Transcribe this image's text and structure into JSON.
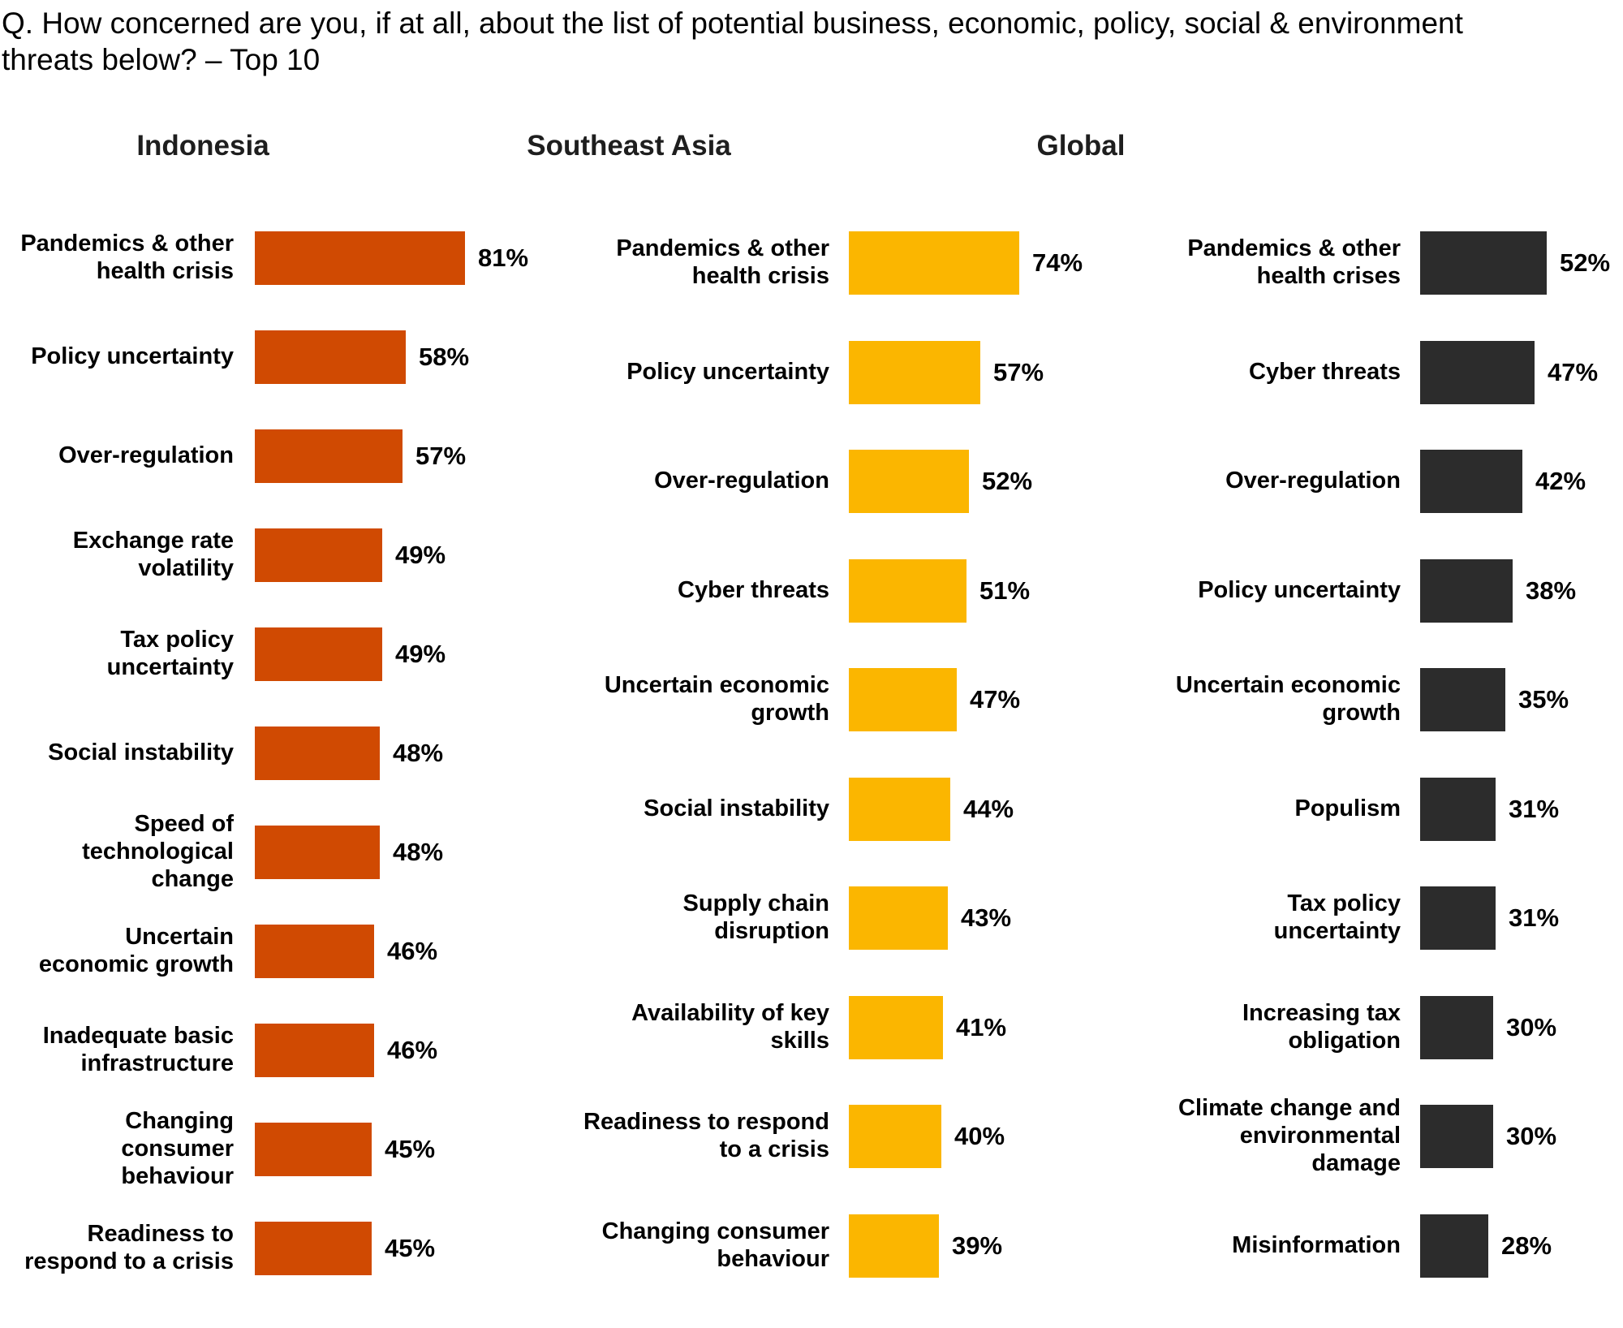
{
  "title": "Q. How concerned are you, if at all, about the list of potential business, economic, policy, social & environment\nthreats below? – Top 10",
  "value_suffix": "%",
  "chart_data": [
    {
      "type": "bar",
      "orientation": "horizontal",
      "group": "Indonesia",
      "unit": "%",
      "bar_color": "#D04A02",
      "categories": [
        "Pandemics & other\nhealth crisis",
        "Policy uncertainty",
        "Over-regulation",
        "Exchange rate\nvolatility",
        "Tax policy\nuncertainty",
        "Social instability",
        "Speed of\ntechnological\nchange",
        "Uncertain\neconomic growth",
        "Inadequate basic\ninfrastructure",
        "Changing\nconsumer\nbehaviour",
        "Readiness to\nrespond to a crisis"
      ],
      "values": [
        81,
        58,
        57,
        49,
        49,
        48,
        48,
        46,
        46,
        45,
        45
      ]
    },
    {
      "type": "bar",
      "orientation": "horizontal",
      "group": "Southeast Asia",
      "unit": "%",
      "bar_color": "#FBB600",
      "categories": [
        "Pandemics & other\nhealth crisis",
        "Policy uncertainty",
        "Over-regulation",
        "Cyber threats",
        "Uncertain economic\ngrowth",
        "Social instability",
        "Supply chain\ndisruption",
        "Availability of key\nskills",
        "Readiness to respond\nto a crisis",
        "Changing consumer\nbehaviour"
      ],
      "values": [
        74,
        57,
        52,
        51,
        47,
        44,
        43,
        41,
        40,
        39
      ]
    },
    {
      "type": "bar",
      "orientation": "horizontal",
      "group": "Global",
      "unit": "%",
      "bar_color": "#2C2C2C",
      "categories": [
        "Pandemics & other\nhealth crises",
        "Cyber threats",
        "Over-regulation",
        "Policy uncertainty",
        "Uncertain economic\ngrowth",
        "Populism",
        "Tax policy\nuncertainty",
        "Increasing tax\nobligation",
        "Climate change and\nenvironmental\ndamage",
        "Misinformation"
      ],
      "values": [
        52,
        47,
        42,
        38,
        35,
        31,
        31,
        30,
        30,
        28
      ]
    }
  ]
}
